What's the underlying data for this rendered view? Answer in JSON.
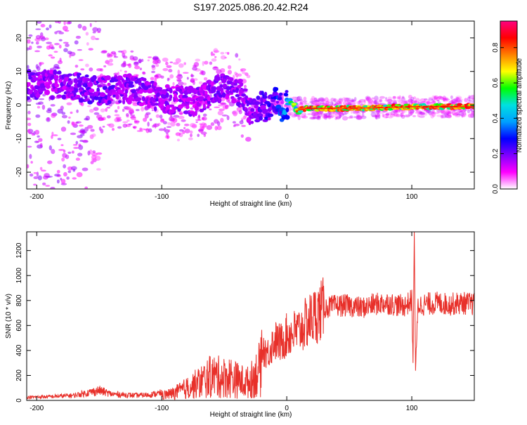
{
  "title": "S197.2025.086.20.42.R24",
  "chart_data": [
    {
      "type": "heatmap",
      "xlabel": "Height of straight line (km)",
      "ylabel": "Frequency (Hz)",
      "xlim": [
        -208,
        150
      ],
      "ylim": [
        -25,
        25
      ],
      "xticks": [
        -200,
        -100,
        0,
        100
      ],
      "yticks": [
        -20,
        -10,
        0,
        10,
        20
      ],
      "colorbar": {
        "label": "Normalized spectral amplitude",
        "range": [
          0,
          0.95
        ],
        "ticks": [
          0,
          0.2,
          0.4,
          0.6,
          0.8
        ],
        "tick_labels": [
          "0.0",
          "0.2",
          "0.4",
          "0.6",
          "0.8"
        ],
        "colormap": "rainbow",
        "stops": [
          "#ffffff",
          "#ff00ff",
          "#8000ff",
          "#0000ff",
          "#00a0ff",
          "#00e0e0",
          "#00ff00",
          "#ffff00",
          "#ff8000",
          "#ff0000",
          "#ff0080"
        ]
      },
      "ridge": [
        {
          "x": -175,
          "y": 6,
          "amp": 0.22
        },
        {
          "x": -150,
          "y": 4,
          "amp": 0.25
        },
        {
          "x": -125,
          "y": 5,
          "amp": 0.22
        },
        {
          "x": -100,
          "y": 2,
          "amp": 0.22
        },
        {
          "x": -75,
          "y": 1,
          "amp": 0.2
        },
        {
          "x": -55,
          "y": 5,
          "amp": 0.22
        },
        {
          "x": -40,
          "y": 5,
          "amp": 0.22
        },
        {
          "x": -30,
          "y": -2,
          "amp": 0.22
        },
        {
          "x": -20,
          "y": -1,
          "amp": 0.25
        },
        {
          "x": -10,
          "y": 0,
          "amp": 0.3
        },
        {
          "x": 0,
          "y": 0.5,
          "amp": 0.45
        },
        {
          "x": 10,
          "y": -1,
          "amp": 0.9
        },
        {
          "x": 50,
          "y": -1,
          "amp": 0.9
        },
        {
          "x": 100,
          "y": -0.5,
          "amp": 0.9
        },
        {
          "x": 150,
          "y": -0.5,
          "amp": 0.95
        }
      ]
    },
    {
      "type": "line",
      "xlabel": "Height of straight line (km)",
      "ylabel": "SNR (10 * v/v)",
      "xlim": [
        -208,
        150
      ],
      "ylim": [
        0,
        1350
      ],
      "xticks": [
        -200,
        -100,
        0,
        100
      ],
      "yticks": [
        0,
        200,
        400,
        600,
        800,
        1000,
        1200
      ],
      "color": "#e8302a",
      "series": [
        {
          "x": [
            -208,
            -190,
            -170,
            -150,
            -140,
            -130,
            -120,
            -110,
            -100,
            -90,
            -80,
            -70,
            -60,
            -50,
            -45,
            -40,
            -35,
            -30,
            -25,
            -20,
            -15,
            -10,
            -5,
            0,
            10,
            20,
            30,
            40,
            50,
            60,
            70,
            80,
            90,
            95,
            100,
            101,
            102,
            103,
            105,
            110,
            120,
            130,
            140,
            150
          ],
          "values": [
            25,
            30,
            40,
            80,
            50,
            45,
            40,
            45,
            60,
            90,
            150,
            220,
            300,
            280,
            290,
            250,
            230,
            220,
            320,
            420,
            380,
            480,
            460,
            520,
            560,
            660,
            740,
            760,
            760,
            740,
            770,
            780,
            760,
            760,
            800,
            300,
            1350,
            250,
            760,
            770,
            780,
            770,
            780,
            770
          ]
        }
      ]
    }
  ]
}
